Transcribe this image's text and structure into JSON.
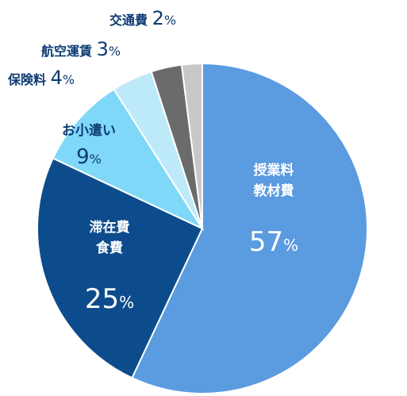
{
  "chart_data": {
    "type": "pie",
    "title": "",
    "slices": [
      {
        "label": "授業料\n教材費",
        "value": 57,
        "display": "57",
        "unit": "%",
        "color": "#5b9be0",
        "text_color": "#ffffff",
        "label_inside": true
      },
      {
        "label": "滞在費\n食費",
        "value": 25,
        "display": "25",
        "unit": "%",
        "color": "#0d4c8c",
        "text_color": "#ffffff",
        "label_inside": true
      },
      {
        "label": "お小遣い",
        "value": 9,
        "display": "9",
        "unit": "%",
        "color": "#7fd8f8",
        "text_color": "#0d3b73",
        "label_inside": true
      },
      {
        "label": "保険料",
        "value": 4,
        "display": "4",
        "unit": "%",
        "color": "#bdeaf9",
        "text_color": "#0d3b73",
        "label_inside": false
      },
      {
        "label": "航空運賃",
        "value": 3,
        "display": "3",
        "unit": "%",
        "color": "#6b6b6b",
        "text_color": "#0d3b73",
        "label_inside": false
      },
      {
        "label": "交通費",
        "value": 2,
        "display": "2",
        "unit": "%",
        "color": "#c8c8c8",
        "text_color": "#0d3b73",
        "label_inside": false
      }
    ]
  }
}
